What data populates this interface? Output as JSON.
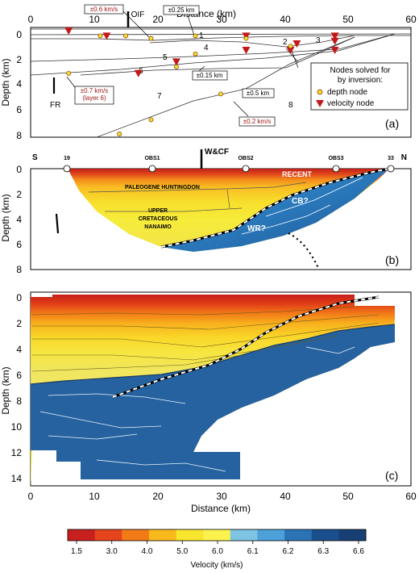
{
  "panel_a": {
    "label": "(a)",
    "xlabel": "Distance (km)",
    "ylabel": "Depth (km)",
    "x_ticks": [
      "0",
      "10",
      "20",
      "30",
      "40",
      "50",
      "60"
    ],
    "y_ticks": [
      "0",
      "2",
      "4",
      "6",
      "8"
    ],
    "top_tag": "OIF",
    "fault_label": "FR",
    "layer_labels": [
      "1",
      "2",
      "3",
      "4",
      "5",
      "6",
      "7",
      "8"
    ],
    "uncertainty_labels": [
      "±0.6 km/s",
      "±0.25 km",
      "±0.15 km",
      "±0.5 km",
      "±0.2 km/s"
    ],
    "uncertainty_layer6": [
      "±0.7 km/s",
      "(layer 6)"
    ],
    "legend": {
      "title_1": "Nodes solved for",
      "title_2": "by inversion:",
      "depth_node": "depth node",
      "velocity_node": "velocity node"
    }
  },
  "panel_b": {
    "label": "(b)",
    "ylabel": "Depth (km)",
    "y_ticks": [
      "0",
      "2",
      "4",
      "6",
      "8"
    ],
    "south": "S",
    "north": "N",
    "top_tag": "W&CF",
    "stations": [
      "19",
      "OBS1",
      "OBS2",
      "OBS3",
      "33"
    ],
    "units": [
      "RECENT",
      "PALEOGENE HUNTINGDON",
      "UPPER",
      "CRETACEOUS",
      "NANAIMO",
      "CB?",
      "WR?"
    ]
  },
  "panel_c": {
    "label": "(c)",
    "xlabel": "Distance (km)",
    "ylabel": "Depth (km)",
    "x_ticks": [
      "0",
      "10",
      "20",
      "30",
      "40",
      "50",
      "60"
    ],
    "y_ticks": [
      "0",
      "2",
      "4",
      "6",
      "8",
      "10",
      "12",
      "14"
    ]
  },
  "colorbar": {
    "label": "Velocity (km/s)",
    "ticks": [
      "1.5",
      "3.0",
      "4.0",
      "5.0",
      "6.0",
      "6.1",
      "6.2",
      "6.3",
      "6.6"
    ],
    "colors": [
      "#c8201e",
      "#e5441c",
      "#f27a17",
      "#f9b81c",
      "#f7e52e",
      "#fbf24e",
      "#7dc3e2",
      "#4ba1d8",
      "#2a74b5",
      "#1a4f8d",
      "#183f74"
    ]
  },
  "chart_data": {
    "type": "heatmap",
    "x_range_km": [
      0,
      60
    ],
    "depth_range_km": [
      0,
      15
    ],
    "velocity_range_km_s": [
      1.5,
      6.6
    ],
    "panel_a_velocity_nodes": [
      {
        "x": 6,
        "z": 0.0
      },
      {
        "x": 12,
        "z": 0.4
      },
      {
        "x": 34,
        "z": 0.4
      },
      {
        "x": 48,
        "z": 0.4
      },
      {
        "x": 34,
        "z": 1.5
      },
      {
        "x": 41,
        "z": 1.5
      },
      {
        "x": 48,
        "z": 1.5
      },
      {
        "x": 23,
        "z": 2.4
      },
      {
        "x": 17,
        "z": 3.3
      },
      {
        "x": 42,
        "z": 1.0
      },
      {
        "x": 48,
        "z": 0.8
      }
    ],
    "panel_a_depth_nodes": [
      {
        "x": 11,
        "z": 0.4
      },
      {
        "x": 15,
        "z": 0.4
      },
      {
        "x": 26,
        "z": 0.4
      },
      {
        "x": 19,
        "z": 0.6
      },
      {
        "x": 34,
        "z": 0.6
      },
      {
        "x": 26,
        "z": 1.8
      },
      {
        "x": 41,
        "z": 1.2
      },
      {
        "x": 6,
        "z": 3.3
      },
      {
        "x": 23,
        "z": 2.8
      },
      {
        "x": 14,
        "z": 8.0
      },
      {
        "x": 30,
        "z": 4.9
      },
      {
        "x": 19,
        "z": 6.9
      }
    ]
  }
}
